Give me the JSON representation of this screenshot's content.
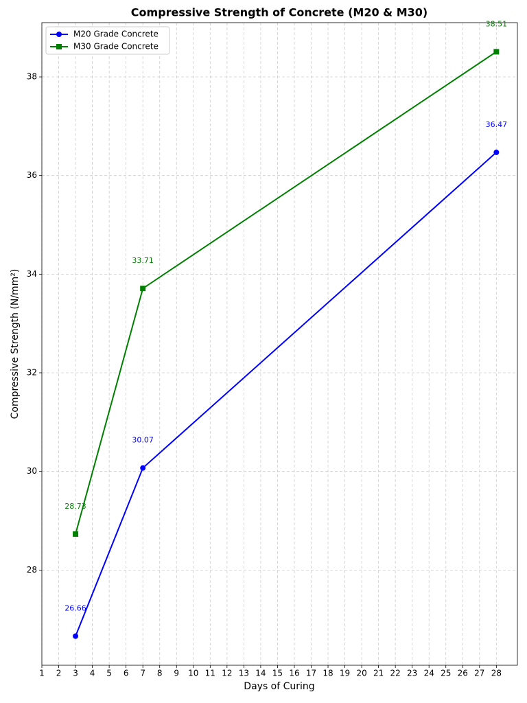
{
  "chart_data": {
    "type": "line",
    "title": "Compressive Strength of Concrete (M20 & M30)",
    "x_label": "Days of Curing",
    "y_label": "Compressive Strength (N/mm²)",
    "x": [
      3,
      7,
      28
    ],
    "series": [
      {
        "name": "M20 Grade Concrete",
        "color": "#0000ff",
        "marker": "circle",
        "values": [
          26.66,
          30.07,
          36.47
        ]
      },
      {
        "name": "M30 Grade Concrete",
        "color": "#008000",
        "marker": "square",
        "values": [
          28.73,
          33.71,
          38.51
        ]
      }
    ],
    "xlim": [
      1,
      29.25
    ],
    "xticks": [
      1,
      2,
      3,
      4,
      5,
      6,
      7,
      8,
      9,
      10,
      11,
      12,
      13,
      14,
      15,
      16,
      17,
      18,
      19,
      20,
      21,
      22,
      23,
      24,
      25,
      26,
      27,
      28
    ],
    "ylim": [
      26.07,
      39.1
    ],
    "yticks": [
      28,
      30,
      32,
      34,
      36,
      38
    ],
    "grid": true,
    "legend": "upper left"
  }
}
